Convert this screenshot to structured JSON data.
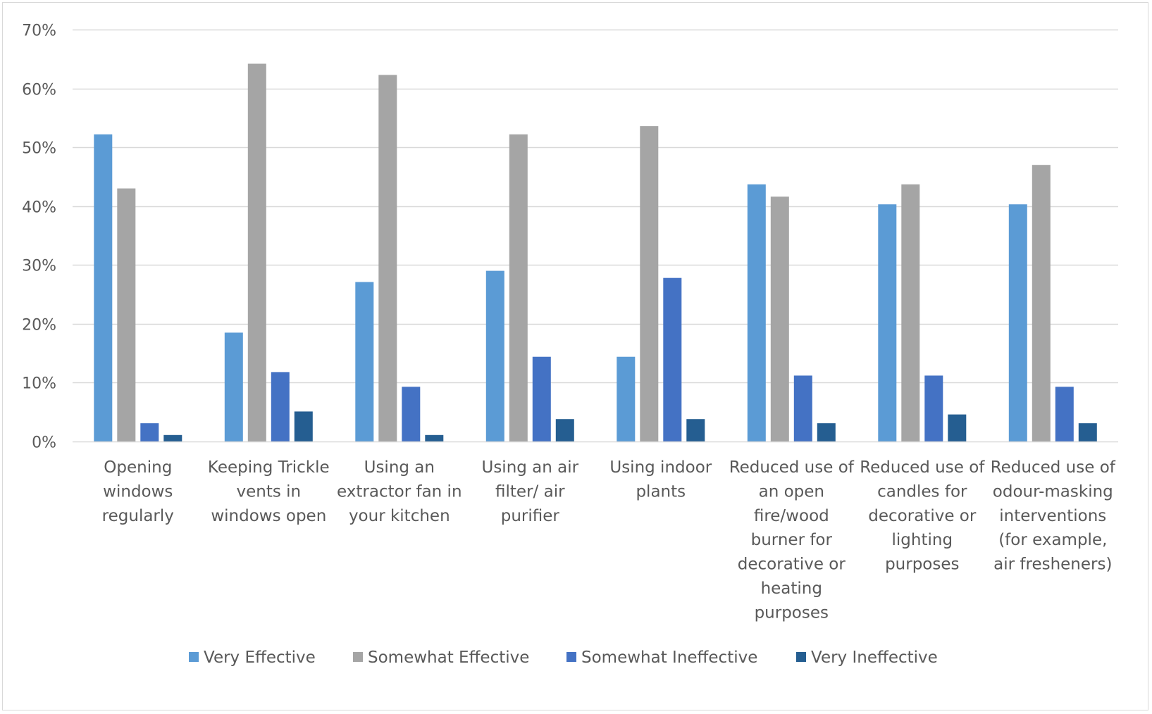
{
  "chart_data": {
    "type": "bar",
    "categories": [
      [
        "Opening",
        "windows",
        "regularly"
      ],
      [
        "Keeping Trickle",
        "vents in",
        "windows open"
      ],
      [
        "Using an",
        "extractor fan in",
        "your kitchen"
      ],
      [
        "Using an air",
        "filter/ air",
        "purifier"
      ],
      [
        "Using indoor",
        "plants"
      ],
      [
        "Reduced use of",
        "an open",
        "fire/wood",
        "burner for",
        "decorative or",
        "heating",
        "purposes"
      ],
      [
        "Reduced use of",
        "candles for",
        "decorative or",
        "lighting",
        "purposes"
      ],
      [
        "Reduced use of",
        "odour-masking",
        "interventions",
        "(for example,",
        "air fresheners)"
      ]
    ],
    "series": [
      {
        "name": "Very Effective",
        "color": "#5b9bd5",
        "values": [
          52.2,
          18.5,
          27.1,
          29.0,
          14.4,
          43.7,
          40.3,
          40.3
        ]
      },
      {
        "name": "Somewhat Effective",
        "color": "#a5a5a5",
        "values": [
          43.0,
          64.2,
          62.3,
          52.2,
          53.6,
          41.6,
          43.7,
          47.0
        ]
      },
      {
        "name": "Somewhat Ineffective",
        "color": "#4472c4",
        "values": [
          3.1,
          11.8,
          9.3,
          14.4,
          27.8,
          11.2,
          11.2,
          9.3
        ]
      },
      {
        "name": "Very Ineffective",
        "color": "#255e91",
        "values": [
          1.1,
          5.1,
          1.1,
          3.8,
          3.8,
          3.1,
          4.6,
          3.1
        ]
      }
    ],
    "ylim": [
      0,
      70
    ],
    "yticks": [
      0,
      10,
      20,
      30,
      40,
      50,
      60,
      70
    ],
    "ytick_labels": [
      "0%",
      "10%",
      "20%",
      "30%",
      "40%",
      "50%",
      "60%",
      "70%"
    ],
    "grid": true,
    "legend_position": "bottom",
    "title": "",
    "xlabel": "",
    "ylabel": ""
  }
}
